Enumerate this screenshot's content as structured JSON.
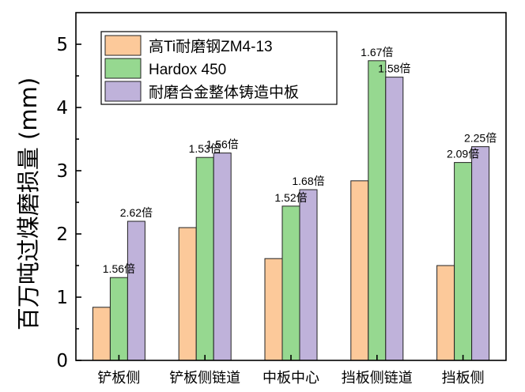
{
  "chart_data": {
    "type": "bar",
    "ylabel": "百万吨过煤磨损量 (mm)",
    "xlabel": "",
    "ylim": [
      0,
      5.5
    ],
    "yticks": [
      0,
      1,
      2,
      3,
      4,
      5
    ],
    "categories": [
      "铲板侧",
      "铲板侧链道",
      "中板中心",
      "挡板侧链道",
      "挡板侧"
    ],
    "series": [
      {
        "name": "高Ti耐磨钢ZM4-13",
        "color": "#fcc99a",
        "values": [
          0.84,
          2.1,
          1.61,
          2.84,
          1.5
        ],
        "labels": [
          "",
          "",
          "",
          "",
          ""
        ]
      },
      {
        "name": "Hardox 450",
        "color": "#96d890",
        "values": [
          1.31,
          3.21,
          2.44,
          4.74,
          3.13
        ],
        "labels": [
          "1.56倍",
          "1.53倍",
          "1.52倍",
          "1.67倍",
          "2.09倍"
        ]
      },
      {
        "name": "耐磨合金整体铸造中板",
        "color": "#bfb2da",
        "values": [
          2.2,
          3.28,
          2.7,
          4.48,
          3.38
        ],
        "labels": [
          "2.62倍",
          "1.56倍",
          "1.68倍",
          "1.58倍",
          "2.25倍"
        ]
      }
    ],
    "legend_position": "top-left",
    "grid": false
  }
}
